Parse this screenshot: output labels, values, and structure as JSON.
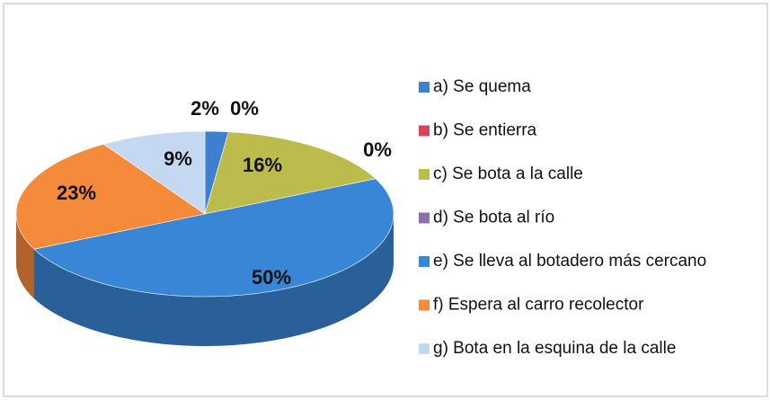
{
  "chart_data": {
    "type": "pie",
    "categories": [
      "a) Se quema",
      "b) Se entierra",
      "c) Se bota a la calle",
      "d) Se bota al río",
      "e) Se lleva al botadero más cercano",
      "f) Espera al carro recolector",
      "g) Bota en la esquina de la calle"
    ],
    "values": [
      2,
      0,
      16,
      0,
      50,
      23,
      9
    ],
    "value_labels": [
      "2%",
      "0%",
      "16%",
      "0%",
      "50%",
      "23%",
      "9%"
    ],
    "colors": [
      "#3f7fd0",
      "#d9405a",
      "#bcbc4c",
      "#8c6fb0",
      "#3a86d6",
      "#f58a3a",
      "#c5d8f2"
    ]
  }
}
